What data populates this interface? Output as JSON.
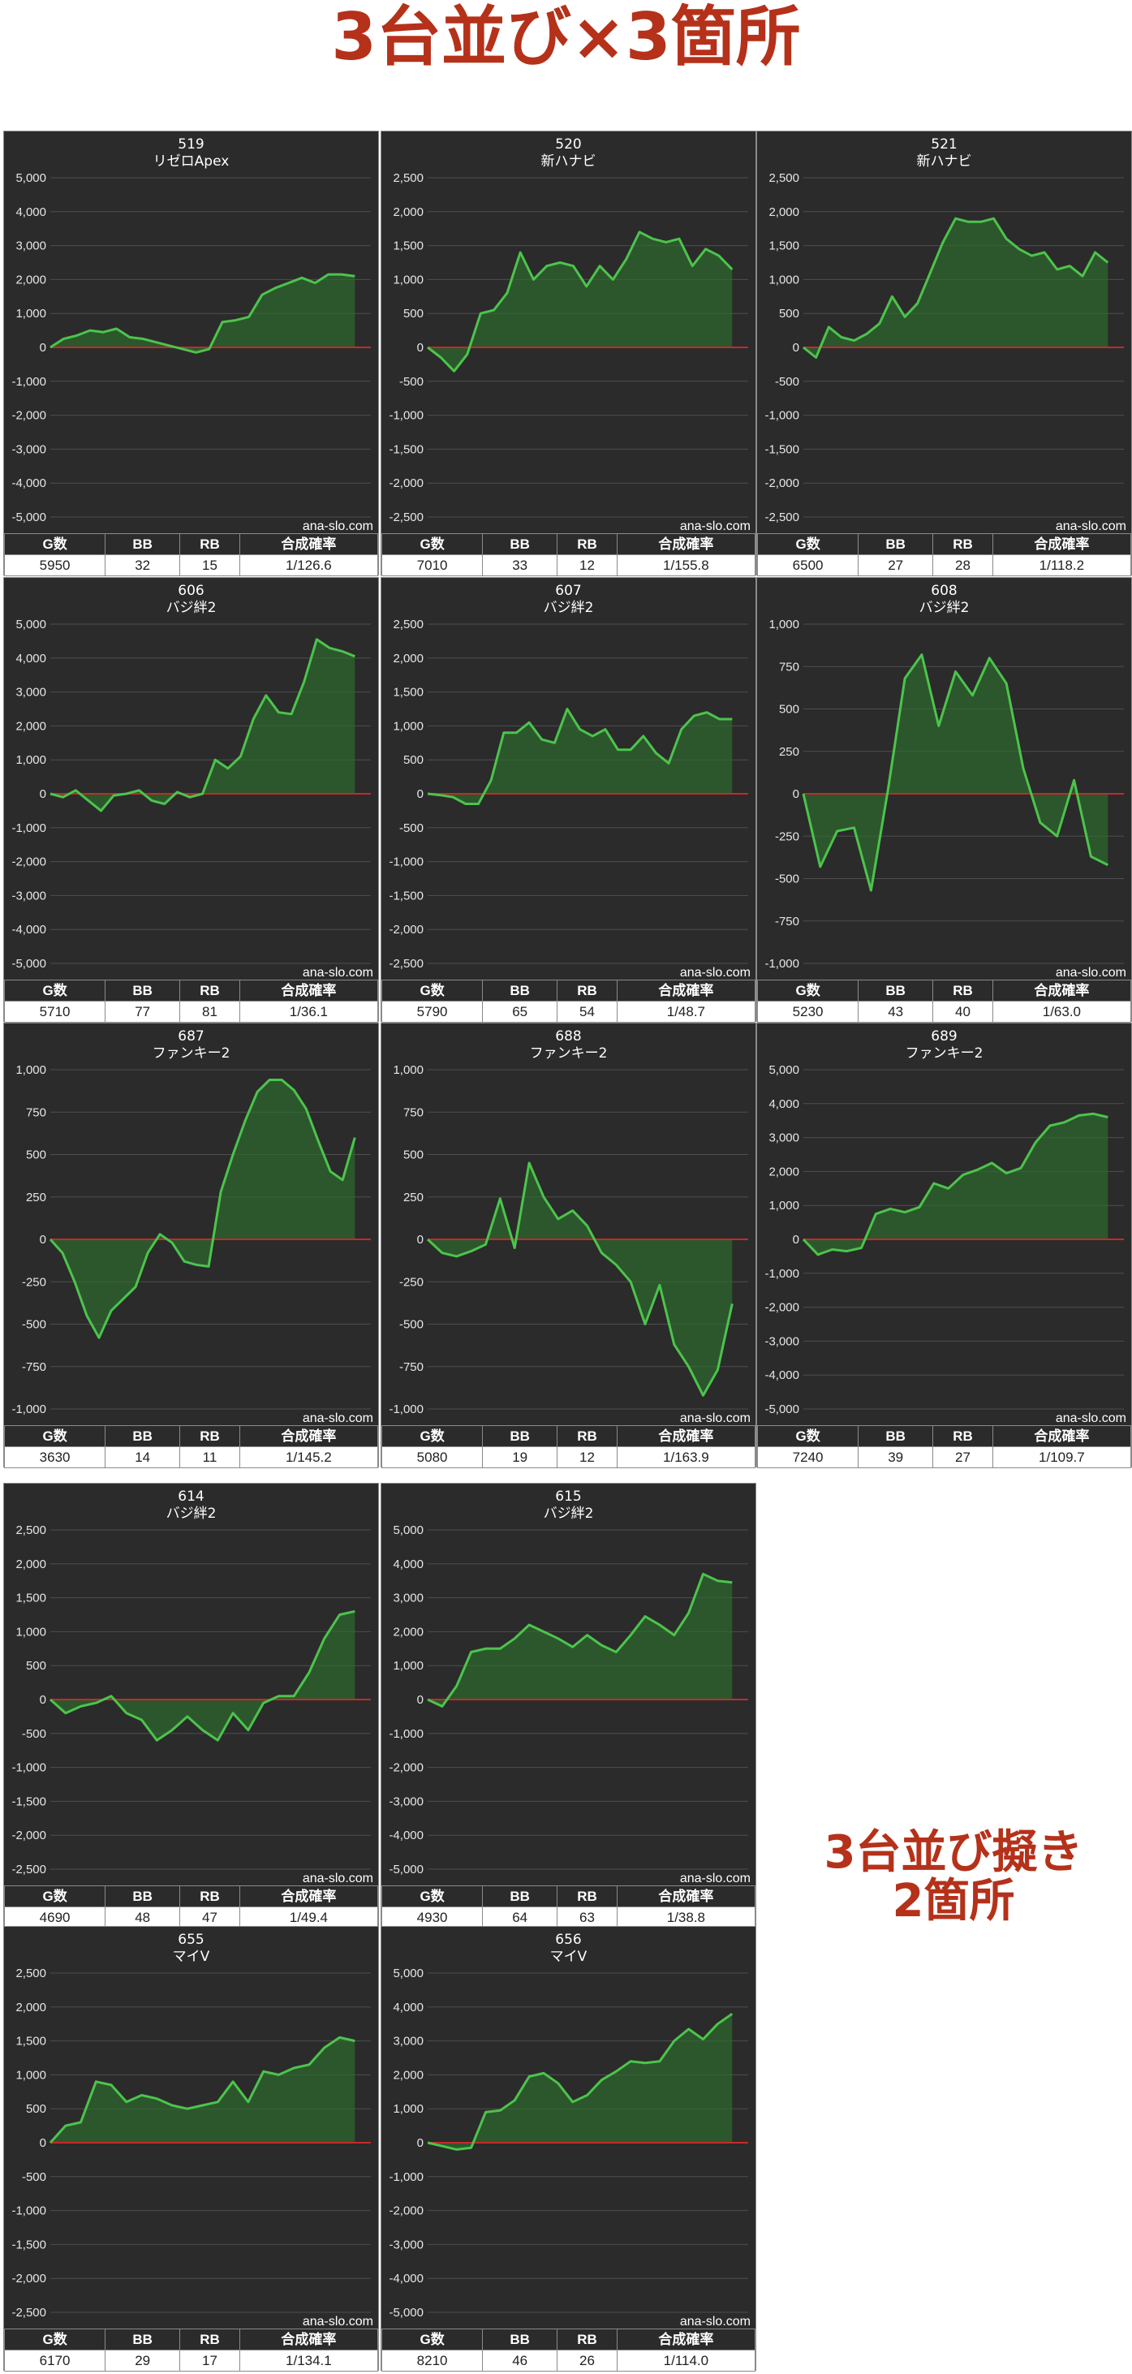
{
  "heading": {
    "title": "3台並び×3箇所",
    "note_line1": "3台並び擬き",
    "note_line2": "2箇所"
  },
  "colors": {
    "panel_bg": "#2b2b2b",
    "series_line": "#4cc44c",
    "series_fill": "#2c6e2c",
    "zero_line": "#c42a2a",
    "heading": "#b5311a"
  },
  "table_headers": [
    "G数",
    "BB",
    "RB",
    "合成確率"
  ],
  "chart_data": [
    {
      "type": "area",
      "machine_no": "519",
      "model": "リゼロApex",
      "watermark": "ana-slo.com",
      "ylim": [
        -5000,
        5000
      ],
      "yticks": [
        5000,
        4000,
        3000,
        2000,
        1000,
        0,
        -1000,
        -2000,
        -3000,
        -4000,
        -5000
      ],
      "values": [
        0,
        250,
        350,
        500,
        450,
        550,
        300,
        250,
        150,
        50,
        -50,
        -150,
        -50,
        750,
        800,
        900,
        1550,
        1750,
        1900,
        2050,
        1900,
        2150,
        2150,
        2100
      ],
      "stats": {
        "games": "5950",
        "bb": "32",
        "rb": "15",
        "ratio": "1/126.6"
      }
    },
    {
      "type": "area",
      "machine_no": "520",
      "model": "新ハナビ",
      "watermark": "ana-slo.com",
      "ylim": [
        -2500,
        2500
      ],
      "yticks": [
        2500,
        2000,
        1500,
        1000,
        500,
        0,
        -500,
        -1000,
        -1500,
        -2000,
        -2500
      ],
      "values": [
        0,
        -150,
        -350,
        -100,
        500,
        550,
        800,
        1400,
        1000,
        1200,
        1250,
        1200,
        900,
        1200,
        1000,
        1300,
        1700,
        1600,
        1550,
        1600,
        1200,
        1450,
        1350,
        1150
      ],
      "stats": {
        "games": "7010",
        "bb": "33",
        "rb": "12",
        "ratio": "1/155.8"
      }
    },
    {
      "type": "area",
      "machine_no": "521",
      "model": "新ハナビ",
      "watermark": "ana-slo.com",
      "ylim": [
        -2500,
        2500
      ],
      "yticks": [
        2500,
        2000,
        1500,
        1000,
        500,
        0,
        -500,
        -1000,
        -1500,
        -2000,
        -2500
      ],
      "values": [
        0,
        -150,
        300,
        150,
        100,
        200,
        350,
        750,
        450,
        650,
        1100,
        1550,
        1900,
        1850,
        1850,
        1900,
        1600,
        1450,
        1350,
        1400,
        1150,
        1200,
        1050,
        1400,
        1250
      ],
      "stats": {
        "games": "6500",
        "bb": "27",
        "rb": "28",
        "ratio": "1/118.2"
      }
    },
    {
      "type": "area",
      "machine_no": "606",
      "model": "バジ絆2",
      "watermark": "ana-slo.com",
      "ylim": [
        -5000,
        5000
      ],
      "yticks": [
        5000,
        4000,
        3000,
        2000,
        1000,
        0,
        -1000,
        -2000,
        -3000,
        -4000,
        -5000
      ],
      "values": [
        0,
        -100,
        100,
        -200,
        -500,
        -50,
        0,
        100,
        -200,
        -300,
        50,
        -100,
        0,
        1000,
        750,
        1100,
        2200,
        2900,
        2400,
        2350,
        3300,
        4550,
        4300,
        4200,
        4050
      ],
      "stats": {
        "games": "5710",
        "bb": "77",
        "rb": "81",
        "ratio": "1/36.1"
      }
    },
    {
      "type": "area",
      "machine_no": "607",
      "model": "バジ絆2",
      "watermark": "ana-slo.com",
      "ylim": [
        -2500,
        2500
      ],
      "yticks": [
        2500,
        2000,
        1500,
        1000,
        500,
        0,
        -500,
        -1000,
        -1500,
        -2000,
        -2500
      ],
      "values": [
        0,
        -20,
        -50,
        -150,
        -150,
        200,
        900,
        900,
        1050,
        800,
        750,
        1250,
        950,
        850,
        950,
        650,
        650,
        850,
        600,
        450,
        950,
        1150,
        1200,
        1100,
        1100
      ],
      "stats": {
        "games": "5790",
        "bb": "65",
        "rb": "54",
        "ratio": "1/48.7"
      }
    },
    {
      "type": "area",
      "machine_no": "608",
      "model": "バジ絆2",
      "watermark": "ana-slo.com",
      "ylim": [
        -1000,
        1000
      ],
      "yticks": [
        1000,
        750,
        500,
        250,
        0,
        -250,
        -500,
        -750,
        -1000
      ],
      "values": [
        0,
        -430,
        -220,
        -200,
        -570,
        20,
        680,
        820,
        400,
        720,
        580,
        800,
        650,
        150,
        -170,
        -250,
        80,
        -370,
        -420
      ],
      "stats": {
        "games": "5230",
        "bb": "43",
        "rb": "40",
        "ratio": "1/63.0"
      }
    },
    {
      "type": "area",
      "machine_no": "687",
      "model": "ファンキー2",
      "watermark": "ana-slo.com",
      "ylim": [
        -1000,
        1000
      ],
      "yticks": [
        1000,
        750,
        500,
        250,
        0,
        -250,
        -500,
        -750,
        -1000
      ],
      "values": [
        0,
        -80,
        -250,
        -450,
        -580,
        -420,
        -350,
        -280,
        -80,
        30,
        -20,
        -130,
        -150,
        -160,
        280,
        500,
        700,
        870,
        940,
        940,
        880,
        770,
        580,
        400,
        350,
        600
      ],
      "stats": {
        "games": "3630",
        "bb": "14",
        "rb": "11",
        "ratio": "1/145.2"
      }
    },
    {
      "type": "area",
      "machine_no": "688",
      "model": "ファンキー2",
      "watermark": "ana-slo.com",
      "ylim": [
        -1000,
        1000
      ],
      "yticks": [
        1000,
        750,
        500,
        250,
        0,
        -250,
        -500,
        -750,
        -1000
      ],
      "values": [
        0,
        -80,
        -100,
        -70,
        -30,
        240,
        -50,
        450,
        250,
        120,
        170,
        80,
        -80,
        -150,
        -250,
        -500,
        -270,
        -620,
        -750,
        -920,
        -770,
        -380
      ],
      "stats": {
        "games": "5080",
        "bb": "19",
        "rb": "12",
        "ratio": "1/163.9"
      }
    },
    {
      "type": "area",
      "machine_no": "689",
      "model": "ファンキー2",
      "watermark": "ana-slo.com",
      "ylim": [
        -5000,
        5000
      ],
      "yticks": [
        5000,
        4000,
        3000,
        2000,
        1000,
        0,
        -1000,
        -2000,
        -3000,
        -4000,
        -5000
      ],
      "values": [
        0,
        -450,
        -300,
        -350,
        -250,
        750,
        900,
        800,
        950,
        1650,
        1500,
        1900,
        2050,
        2250,
        1950,
        2100,
        2850,
        3350,
        3450,
        3650,
        3700,
        3600
      ],
      "stats": {
        "games": "7240",
        "bb": "39",
        "rb": "27",
        "ratio": "1/109.7"
      }
    },
    {
      "type": "area",
      "machine_no": "614",
      "model": "バジ絆2",
      "watermark": "ana-slo.com",
      "ylim": [
        -2500,
        2500
      ],
      "yticks": [
        2500,
        2000,
        1500,
        1000,
        500,
        0,
        -500,
        -1000,
        -1500,
        -2000,
        -2500
      ],
      "values": [
        0,
        -200,
        -100,
        -50,
        50,
        -200,
        -300,
        -600,
        -450,
        -250,
        -450,
        -600,
        -200,
        -450,
        -50,
        50,
        50,
        400,
        900,
        1250,
        1300
      ],
      "stats": {
        "games": "4690",
        "bb": "48",
        "rb": "47",
        "ratio": "1/49.4"
      }
    },
    {
      "type": "area",
      "machine_no": "615",
      "model": "バジ絆2",
      "watermark": "ana-slo.com",
      "ylim": [
        -5000,
        5000
      ],
      "yticks": [
        5000,
        4000,
        3000,
        2000,
        1000,
        0,
        -1000,
        -2000,
        -3000,
        -4000,
        -5000
      ],
      "values": [
        0,
        -200,
        400,
        1400,
        1500,
        1500,
        1800,
        2200,
        2000,
        1800,
        1550,
        1900,
        1600,
        1400,
        1900,
        2450,
        2200,
        1900,
        2550,
        3700,
        3500,
        3450
      ],
      "stats": {
        "games": "4930",
        "bb": "64",
        "rb": "63",
        "ratio": "1/38.8"
      }
    },
    {
      "type": "area",
      "machine_no": "655",
      "model": "マイV",
      "watermark": "ana-slo.com",
      "ylim": [
        -2500,
        2500
      ],
      "yticks": [
        2500,
        2000,
        1500,
        1000,
        500,
        0,
        -500,
        -1000,
        -1500,
        -2000,
        -2500
      ],
      "values": [
        0,
        250,
        300,
        900,
        850,
        600,
        700,
        650,
        550,
        500,
        550,
        600,
        900,
        600,
        1050,
        1000,
        1100,
        1150,
        1400,
        1550,
        1500
      ],
      "stats": {
        "games": "6170",
        "bb": "29",
        "rb": "17",
        "ratio": "1/134.1"
      }
    },
    {
      "type": "area",
      "machine_no": "656",
      "model": "マイV",
      "watermark": "ana-slo.com",
      "ylim": [
        -5000,
        5000
      ],
      "yticks": [
        5000,
        4000,
        3000,
        2000,
        1000,
        0,
        -1000,
        -2000,
        -3000,
        -4000,
        -5000
      ],
      "values": [
        0,
        -100,
        -200,
        -150,
        900,
        950,
        1250,
        1950,
        2050,
        1750,
        1200,
        1400,
        1850,
        2100,
        2400,
        2350,
        2400,
        3000,
        3350,
        3050,
        3500,
        3800
      ],
      "stats": {
        "games": "8210",
        "bb": "46",
        "rb": "26",
        "ratio": "1/114.0"
      }
    }
  ]
}
